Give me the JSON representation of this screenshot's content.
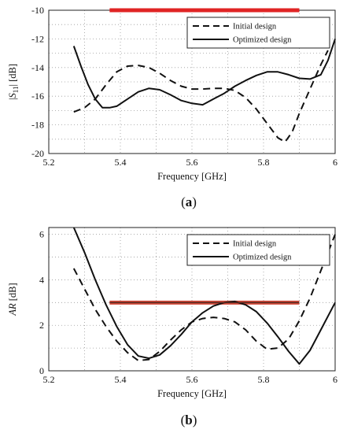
{
  "chart_data": [
    {
      "type": "line",
      "panel_label": "a",
      "xlabel": "Frequency [GHz]",
      "ylabel": "|S11| [dB]",
      "ylabel_parts": {
        "pre": "|",
        "italic": "S",
        "sub": "11",
        "post": "| [dB]"
      },
      "xlim": [
        5.2,
        6.0
      ],
      "ylim": [
        -20,
        -10
      ],
      "xticks": [
        "5.2",
        "5.4",
        "5.6",
        "5.8",
        "6"
      ],
      "xtick_values": [
        5.2,
        5.4,
        5.6,
        5.8,
        6.0
      ],
      "yticks": [
        "-10",
        "-12",
        "-14",
        "-16",
        "-18",
        "-20"
      ],
      "ytick_values": [
        -10,
        -12,
        -14,
        -16,
        -18,
        -20
      ],
      "grid": true,
      "legend_position": "top-right",
      "legend": [
        "Initial design",
        "Optimized design"
      ],
      "series": [
        {
          "name": "Initial design",
          "style": "dashed",
          "color": "#111111",
          "x": [
            5.27,
            5.3,
            5.33,
            5.36,
            5.39,
            5.42,
            5.45,
            5.48,
            5.51,
            5.54,
            5.57,
            5.6,
            5.63,
            5.66,
            5.69,
            5.72,
            5.75,
            5.78,
            5.81,
            5.84,
            5.86,
            5.88,
            5.9,
            5.93,
            5.96,
            5.98
          ],
          "y": [
            -17.1,
            -16.8,
            -16.2,
            -15.2,
            -14.3,
            -13.9,
            -13.85,
            -14.0,
            -14.4,
            -14.9,
            -15.3,
            -15.5,
            -15.5,
            -15.45,
            -15.45,
            -15.6,
            -16.1,
            -16.9,
            -17.9,
            -18.9,
            -19.2,
            -18.5,
            -17.2,
            -15.5,
            -13.8,
            -12.8
          ]
        },
        {
          "name": "Optimized design",
          "style": "solid",
          "color": "#111111",
          "x": [
            5.27,
            5.29,
            5.31,
            5.33,
            5.35,
            5.37,
            5.39,
            5.42,
            5.45,
            5.48,
            5.51,
            5.54,
            5.57,
            5.6,
            5.63,
            5.66,
            5.69,
            5.72,
            5.75,
            5.78,
            5.81,
            5.84,
            5.87,
            5.9,
            5.93,
            5.96,
            5.98,
            6.0
          ],
          "y": [
            -12.5,
            -13.9,
            -15.2,
            -16.2,
            -16.8,
            -16.8,
            -16.7,
            -16.2,
            -15.7,
            -15.45,
            -15.55,
            -15.9,
            -16.3,
            -16.5,
            -16.6,
            -16.2,
            -15.8,
            -15.3,
            -14.9,
            -14.55,
            -14.3,
            -14.3,
            -14.5,
            -14.75,
            -14.8,
            -14.5,
            -13.5,
            -12.0
          ]
        }
      ],
      "highlight": {
        "color": "#e02424",
        "x_from": 5.37,
        "x_to": 5.9,
        "y": -10.0
      }
    },
    {
      "type": "line",
      "panel_label": "b",
      "xlabel": "Frequency [GHz]",
      "ylabel": "AR  [dB]",
      "ylabel_parts": {
        "pre": "",
        "italic": "AR",
        "sub": "",
        "post": "  [dB]"
      },
      "xlim": [
        5.2,
        6.0
      ],
      "ylim": [
        0,
        6.3
      ],
      "xticks": [
        "5.2",
        "5.4",
        "5.6",
        "5.8",
        "6"
      ],
      "xtick_values": [
        5.2,
        5.4,
        5.6,
        5.8,
        6.0
      ],
      "yticks": [
        "0",
        "2",
        "4",
        "6"
      ],
      "ytick_values": [
        0,
        2,
        4,
        6
      ],
      "grid": true,
      "legend_position": "top-right",
      "legend": [
        "Initial design",
        "Optimized design"
      ],
      "series": [
        {
          "name": "Initial design",
          "style": "dashed",
          "color": "#111111",
          "x": [
            5.27,
            5.3,
            5.33,
            5.36,
            5.39,
            5.42,
            5.45,
            5.48,
            5.51,
            5.54,
            5.57,
            5.6,
            5.63,
            5.66,
            5.69,
            5.72,
            5.75,
            5.78,
            5.81,
            5.84,
            5.87,
            5.9,
            5.93,
            5.96,
            6.0
          ],
          "y": [
            4.5,
            3.6,
            2.7,
            1.95,
            1.3,
            0.8,
            0.45,
            0.5,
            0.85,
            1.35,
            1.8,
            2.15,
            2.3,
            2.35,
            2.3,
            2.15,
            1.8,
            1.3,
            0.95,
            1.0,
            1.4,
            2.2,
            3.2,
            4.4,
            6.0
          ]
        },
        {
          "name": "Optimized design",
          "style": "solid",
          "color": "#111111",
          "x": [
            5.27,
            5.3,
            5.33,
            5.36,
            5.39,
            5.42,
            5.45,
            5.48,
            5.51,
            5.54,
            5.57,
            5.6,
            5.63,
            5.66,
            5.69,
            5.72,
            5.75,
            5.78,
            5.81,
            5.84,
            5.87,
            5.9,
            5.93,
            5.96,
            6.0
          ],
          "y": [
            6.3,
            5.2,
            4.0,
            2.9,
            1.95,
            1.15,
            0.65,
            0.55,
            0.7,
            1.1,
            1.6,
            2.15,
            2.55,
            2.85,
            3.0,
            3.05,
            2.9,
            2.6,
            2.1,
            1.5,
            0.85,
            0.3,
            0.9,
            1.8,
            3.0
          ]
        }
      ],
      "highlight": {
        "color": "#d44a3a",
        "x_from": 5.37,
        "x_to": 5.9,
        "y": 3.0
      }
    }
  ]
}
